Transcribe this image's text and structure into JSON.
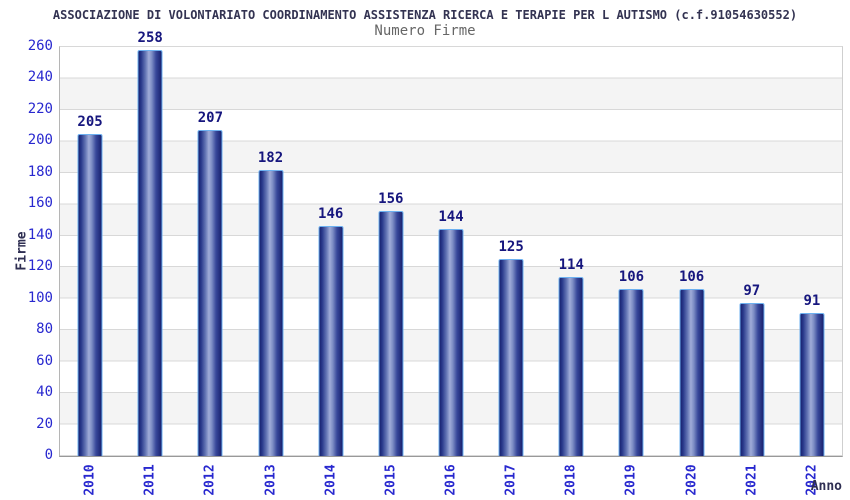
{
  "header": {
    "title": "ASSOCIAZIONE DI VOLONTARIATO COORDINAMENTO ASSISTENZA RICERCA E TERAPIE PER L AUTISMO (c.f.91054630552)",
    "subtitle": "Numero Firme"
  },
  "chart_data": {
    "type": "bar",
    "title": "Numero Firme",
    "categories": [
      "2010",
      "2011",
      "2012",
      "2013",
      "2014",
      "2015",
      "2016",
      "2017",
      "2018",
      "2019",
      "2020",
      "2021",
      "2022"
    ],
    "values": [
      205,
      258,
      207,
      182,
      146,
      156,
      144,
      125,
      114,
      106,
      106,
      97,
      91
    ],
    "xlabel": "Anno",
    "ylabel": "Firme",
    "ylim": [
      0,
      260
    ],
    "ytick_step": 20,
    "legend": "none",
    "grid": "horizontal gridlines every 20 with alternating white/gray bands",
    "value_labels": "shown above each bar"
  },
  "colors": {
    "title": "#333352",
    "subtitle": "#666666",
    "tick_label": "#2828cf",
    "value_label": "#16167e",
    "axis_title": "#2e2e52",
    "bar_dark": "#18216e",
    "bar_mid": "#6374b4",
    "bar_light": "#a0acd8",
    "bar_border": "#6cb0f0",
    "band_gray": "#f4f4f4",
    "grid_line": "#d8d8d8",
    "axis_line": "#999999"
  }
}
